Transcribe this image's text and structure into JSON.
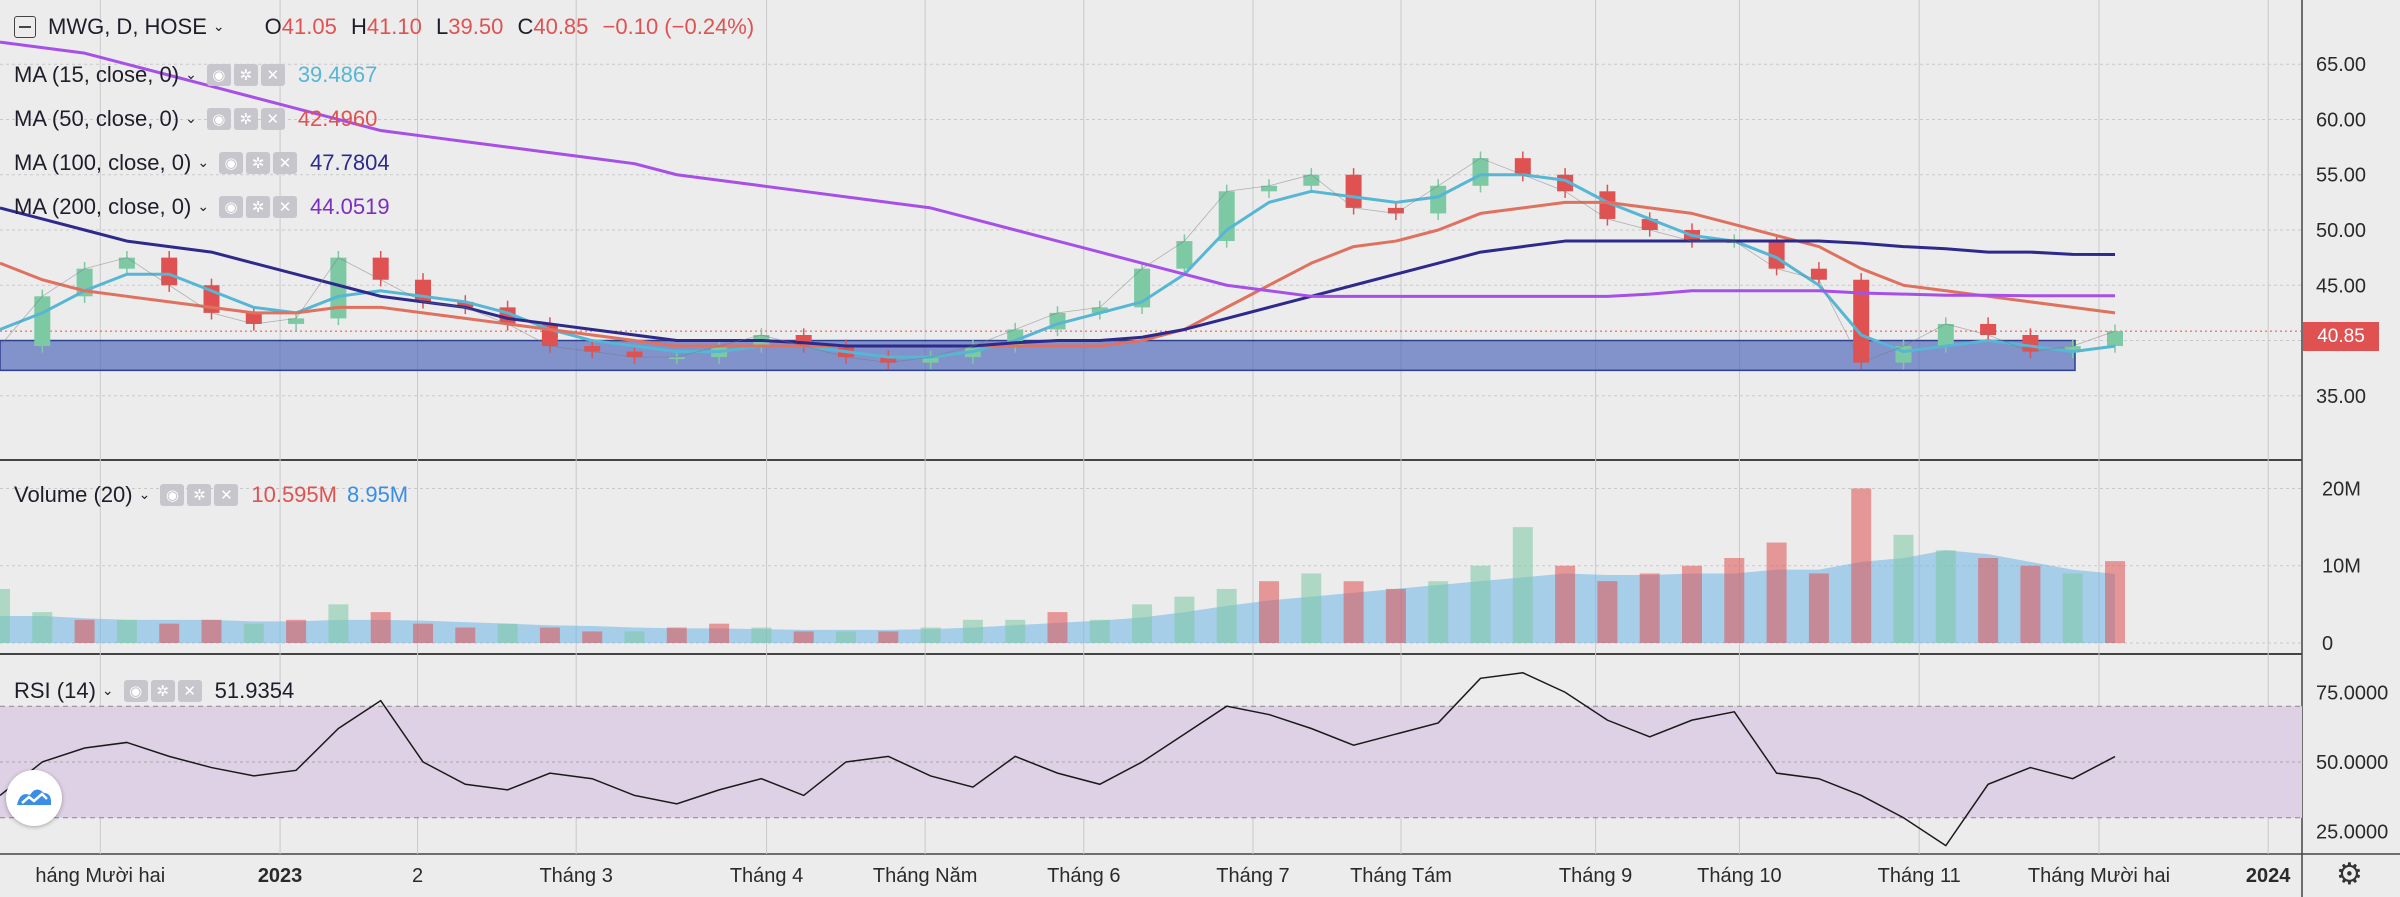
{
  "header": {
    "symbol": "MWG, D, HOSE",
    "open_label": "O",
    "open": "41.05",
    "high_label": "H",
    "high": "41.10",
    "low_label": "L",
    "low": "39.50",
    "close_label": "C",
    "close": "40.85",
    "change": "−0.10 (−0.24%)"
  },
  "indicators": {
    "ma15": {
      "label": "MA (15, close, 0)",
      "value": "39.4867",
      "color": "#56b6d3"
    },
    "ma50": {
      "label": "MA (50, close, 0)",
      "value": "42.4960",
      "color": "#e0715e"
    },
    "ma100": {
      "label": "MA (100, close, 0)",
      "value": "47.7804",
      "color": "#2e2a8c"
    },
    "ma200": {
      "label": "MA (200, close, 0)",
      "value": "44.0519",
      "color": "#a650e8"
    },
    "volume": {
      "label": "Volume (20)",
      "value1": "10.595M",
      "value2": "8.95M"
    },
    "rsi": {
      "label": "RSI (14)",
      "value": "51.9354"
    }
  },
  "last_price_tag": "40.85",
  "colors": {
    "up": "#7cc9a4",
    "down": "#e05252",
    "zone": "#4a63b8",
    "rsi_band": "#ded0e5"
  },
  "icons": [
    "collapse-icon",
    "eye-icon",
    "gear-icon",
    "close-icon",
    "chevron-down-icon",
    "logo-icon",
    "settings-gear-icon"
  ],
  "chart_data": [
    {
      "type": "line",
      "title": "MWG, D, HOSE",
      "ylim": [
        31,
        69
      ],
      "y_ticks": [
        "35.00",
        "40.00",
        "45.00",
        "50.00",
        "55.00",
        "60.00",
        "65.00"
      ],
      "x_labels": [
        "háng Mười hai",
        "2023",
        "2",
        "Tháng 3",
        "Tháng 4",
        "Tháng Năm",
        "Tháng 6",
        "Tháng 7",
        "Tháng Tám",
        "Tháng 9",
        "Tháng 10",
        "Tháng 11",
        "Tháng Mười hai",
        "2024"
      ],
      "x": [
        0,
        0.02,
        0.04,
        0.06,
        0.08,
        0.1,
        0.12,
        0.14,
        0.16,
        0.18,
        0.2,
        0.22,
        0.24,
        0.26,
        0.28,
        0.3,
        0.32,
        0.34,
        0.36,
        0.38,
        0.4,
        0.42,
        0.44,
        0.46,
        0.48,
        0.5,
        0.52,
        0.54,
        0.56,
        0.58,
        0.6,
        0.62,
        0.64,
        0.66,
        0.68,
        0.7,
        0.72,
        0.74,
        0.76,
        0.78,
        0.8,
        0.82,
        0.84,
        0.86,
        0.88,
        0.9,
        0.92,
        0.94,
        0.96,
        0.98,
        1
      ],
      "series": [
        {
          "name": "Close",
          "values": [
            39.5,
            44,
            46.5,
            47.5,
            45,
            42.5,
            41.5,
            42,
            47.5,
            45.5,
            43.5,
            43,
            41.5,
            39.5,
            39,
            38.5,
            38.5,
            39.5,
            40.5,
            39.5,
            38.5,
            38,
            38.5,
            39.5,
            41,
            42.5,
            43,
            46.5,
            49,
            53.5,
            54,
            55,
            52,
            51.5,
            54,
            56.5,
            55,
            53.5,
            51,
            50,
            49,
            49,
            46.5,
            45.5,
            38,
            39.5,
            41.5,
            40.5,
            39,
            39.5,
            40.85
          ]
        },
        {
          "name": "MA (15, close, 0)",
          "values": [
            41,
            42.5,
            44.5,
            46,
            46,
            44.5,
            43,
            42.5,
            44,
            44.5,
            44,
            43.5,
            42.5,
            41,
            40,
            39.5,
            39,
            39,
            39.5,
            39.5,
            39,
            38.5,
            38.5,
            39,
            40,
            41.5,
            42.5,
            43.5,
            46,
            50,
            52.5,
            53.5,
            53,
            52.5,
            53,
            55,
            55,
            54.5,
            52.5,
            51,
            49.5,
            49,
            47.5,
            45,
            40.5,
            39,
            39.5,
            40,
            39.5,
            39,
            39.49
          ]
        },
        {
          "name": "MA (50, close, 0)",
          "values": [
            47,
            45.5,
            44.5,
            44,
            43.5,
            43,
            42.5,
            42.5,
            43,
            43,
            42.5,
            42,
            41.5,
            41,
            40.5,
            40,
            39.5,
            39.5,
            39.5,
            39.5,
            39.5,
            39.5,
            39.5,
            39.5,
            39.5,
            39.5,
            39.5,
            40,
            41,
            43,
            45,
            47,
            48.5,
            49,
            50,
            51.5,
            52,
            52.5,
            52.5,
            52,
            51.5,
            50.5,
            49.5,
            48.5,
            46.5,
            45,
            44.5,
            44,
            43.5,
            43,
            42.5
          ]
        },
        {
          "name": "MA (100, close, 0)",
          "values": [
            52,
            51,
            50,
            49,
            48.5,
            48,
            47,
            46,
            45,
            44,
            43.5,
            43,
            42,
            41.5,
            41,
            40.5,
            40,
            40,
            40,
            39.8,
            39.5,
            39.5,
            39.5,
            39.5,
            39.8,
            40,
            40,
            40.3,
            41,
            42,
            43,
            44,
            45,
            46,
            47,
            48,
            48.5,
            49,
            49,
            49,
            49,
            49,
            49,
            49,
            48.8,
            48.5,
            48.3,
            48,
            48,
            47.8,
            47.78
          ]
        },
        {
          "name": "MA (200, close, 0)",
          "values": [
            67,
            66.5,
            66,
            65,
            64,
            63,
            62,
            61,
            60,
            59,
            58.5,
            58,
            57.5,
            57,
            56.5,
            56,
            55,
            54.5,
            54,
            53.5,
            53,
            52.5,
            52,
            51,
            50,
            49,
            48,
            47,
            46,
            45,
            44.5,
            44,
            44,
            44,
            44,
            44,
            44,
            44,
            44,
            44.2,
            44.5,
            44.5,
            44.5,
            44.5,
            44.3,
            44.2,
            44.1,
            44.1,
            44.05,
            44.05,
            44.05
          ]
        }
      ]
    },
    {
      "type": "bar",
      "title": "Volume (20)",
      "ylim": [
        0,
        22
      ],
      "y_ticks": [
        "0",
        "10M",
        "20M"
      ],
      "x": [
        0,
        0.02,
        0.04,
        0.06,
        0.08,
        0.1,
        0.12,
        0.14,
        0.16,
        0.18,
        0.2,
        0.22,
        0.24,
        0.26,
        0.28,
        0.3,
        0.32,
        0.34,
        0.36,
        0.38,
        0.4,
        0.42,
        0.44,
        0.46,
        0.48,
        0.5,
        0.52,
        0.54,
        0.56,
        0.58,
        0.6,
        0.62,
        0.64,
        0.66,
        0.68,
        0.7,
        0.72,
        0.74,
        0.76,
        0.78,
        0.8,
        0.82,
        0.84,
        0.86,
        0.88,
        0.9,
        0.92,
        0.94,
        0.96,
        0.98,
        1
      ],
      "series": [
        {
          "name": "Volume",
          "values": [
            7,
            4,
            3,
            3,
            2.5,
            3,
            2.5,
            3,
            5,
            4,
            2.5,
            2,
            2.5,
            2,
            1.5,
            1.5,
            2,
            2.5,
            2,
            1.5,
            1.5,
            1.5,
            2,
            3,
            3,
            4,
            3,
            5,
            6,
            7,
            8,
            9,
            8,
            7,
            8,
            10,
            15,
            10,
            8,
            9,
            10,
            11,
            13,
            9,
            20,
            14,
            12,
            11,
            10,
            9,
            10.6
          ]
        },
        {
          "name": "Volume MA",
          "values": [
            3.5,
            3.5,
            3.2,
            3,
            3,
            3,
            2.8,
            2.8,
            3,
            3,
            2.9,
            2.7,
            2.5,
            2.3,
            2.2,
            2,
            1.9,
            1.9,
            1.8,
            1.7,
            1.7,
            1.7,
            1.8,
            2,
            2.3,
            2.6,
            2.9,
            3.3,
            4,
            4.8,
            5.5,
            6,
            6.5,
            7,
            7.5,
            8,
            8.5,
            9,
            8.8,
            8.8,
            9,
            9,
            9.5,
            9.5,
            10.5,
            11,
            12,
            11.5,
            10.5,
            9.5,
            8.95
          ]
        }
      ],
      "up": [
        1,
        1,
        0,
        1,
        0,
        0,
        1,
        0,
        1,
        0,
        0,
        0,
        1,
        0,
        0,
        1,
        0,
        0,
        1,
        0,
        1,
        0,
        1,
        1,
        1,
        0,
        1,
        1,
        1,
        1,
        0,
        1,
        0,
        0,
        1,
        1,
        1,
        0,
        0,
        0,
        0,
        0,
        0,
        0,
        0,
        1,
        1,
        0,
        0,
        1,
        0
      ]
    },
    {
      "type": "line",
      "title": "RSI (14)",
      "ylim": [
        17,
        88
      ],
      "y_ticks": [
        "25.0000",
        "50.0000",
        "75.0000"
      ],
      "x": [
        0,
        0.02,
        0.04,
        0.06,
        0.08,
        0.1,
        0.12,
        0.14,
        0.16,
        0.18,
        0.2,
        0.22,
        0.24,
        0.26,
        0.28,
        0.3,
        0.32,
        0.34,
        0.36,
        0.38,
        0.4,
        0.42,
        0.44,
        0.46,
        0.48,
        0.5,
        0.52,
        0.54,
        0.56,
        0.58,
        0.6,
        0.62,
        0.64,
        0.66,
        0.68,
        0.7,
        0.72,
        0.74,
        0.76,
        0.78,
        0.8,
        0.82,
        0.84,
        0.86,
        0.88,
        0.9,
        0.92,
        0.94,
        0.96,
        0.98,
        1
      ],
      "series": [
        {
          "name": "RSI",
          "values": [
            38,
            50,
            55,
            57,
            52,
            48,
            45,
            47,
            62,
            72,
            50,
            42,
            40,
            46,
            44,
            38,
            35,
            40,
            44,
            38,
            50,
            52,
            45,
            41,
            52,
            46,
            42,
            50,
            60,
            70,
            67,
            62,
            56,
            60,
            64,
            80,
            82,
            75,
            65,
            59,
            65,
            68,
            46,
            44,
            38,
            30,
            20,
            42,
            48,
            44,
            51.94
          ]
        }
      ],
      "bands": [
        70,
        30
      ]
    }
  ]
}
